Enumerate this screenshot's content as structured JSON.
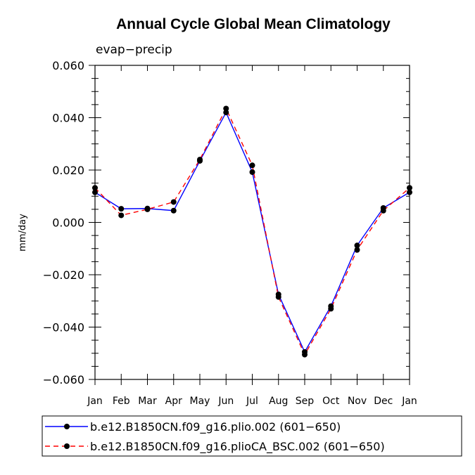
{
  "chart_data": {
    "type": "line",
    "title": "Annual Cycle Global Mean Climatology",
    "subtitle": "evap−precip",
    "ylabel": "mm/day",
    "xlabel": "",
    "categories": [
      "Jan",
      "Feb",
      "Mar",
      "Apr",
      "May",
      "Jun",
      "Jul",
      "Aug",
      "Sep",
      "Oct",
      "Nov",
      "Dec",
      "Jan"
    ],
    "ylim": [
      -0.06,
      0.06
    ],
    "yticks": [
      0.06,
      0.04,
      0.02,
      0.0,
      -0.02,
      -0.04,
      -0.06
    ],
    "ytick_labels": [
      "0.060",
      "0.040",
      "0.020",
      "0.000",
      "−0.020",
      "−0.040",
      "−0.060"
    ],
    "grid": false,
    "legend_position": "bottom",
    "series": [
      {
        "name": "b.e12.B1850CN.f09_g16.plio.002 (601−650)",
        "color": "#0000ff",
        "dash": "solid",
        "values": [
          0.0115,
          0.0052,
          0.0053,
          0.0045,
          0.0235,
          0.042,
          0.0192,
          -0.0275,
          -0.0495,
          -0.032,
          -0.0088,
          0.0055,
          0.0115
        ]
      },
      {
        "name": "b.e12.B1850CN.f09_g16.plioCA_BSC.002 (601−650)",
        "color": "#ff0000",
        "dash": "dashed",
        "values": [
          0.0132,
          0.0027,
          0.005,
          0.0078,
          0.024,
          0.0435,
          0.0218,
          -0.0285,
          -0.0505,
          -0.033,
          -0.0105,
          0.0045,
          0.0132
        ]
      }
    ]
  }
}
